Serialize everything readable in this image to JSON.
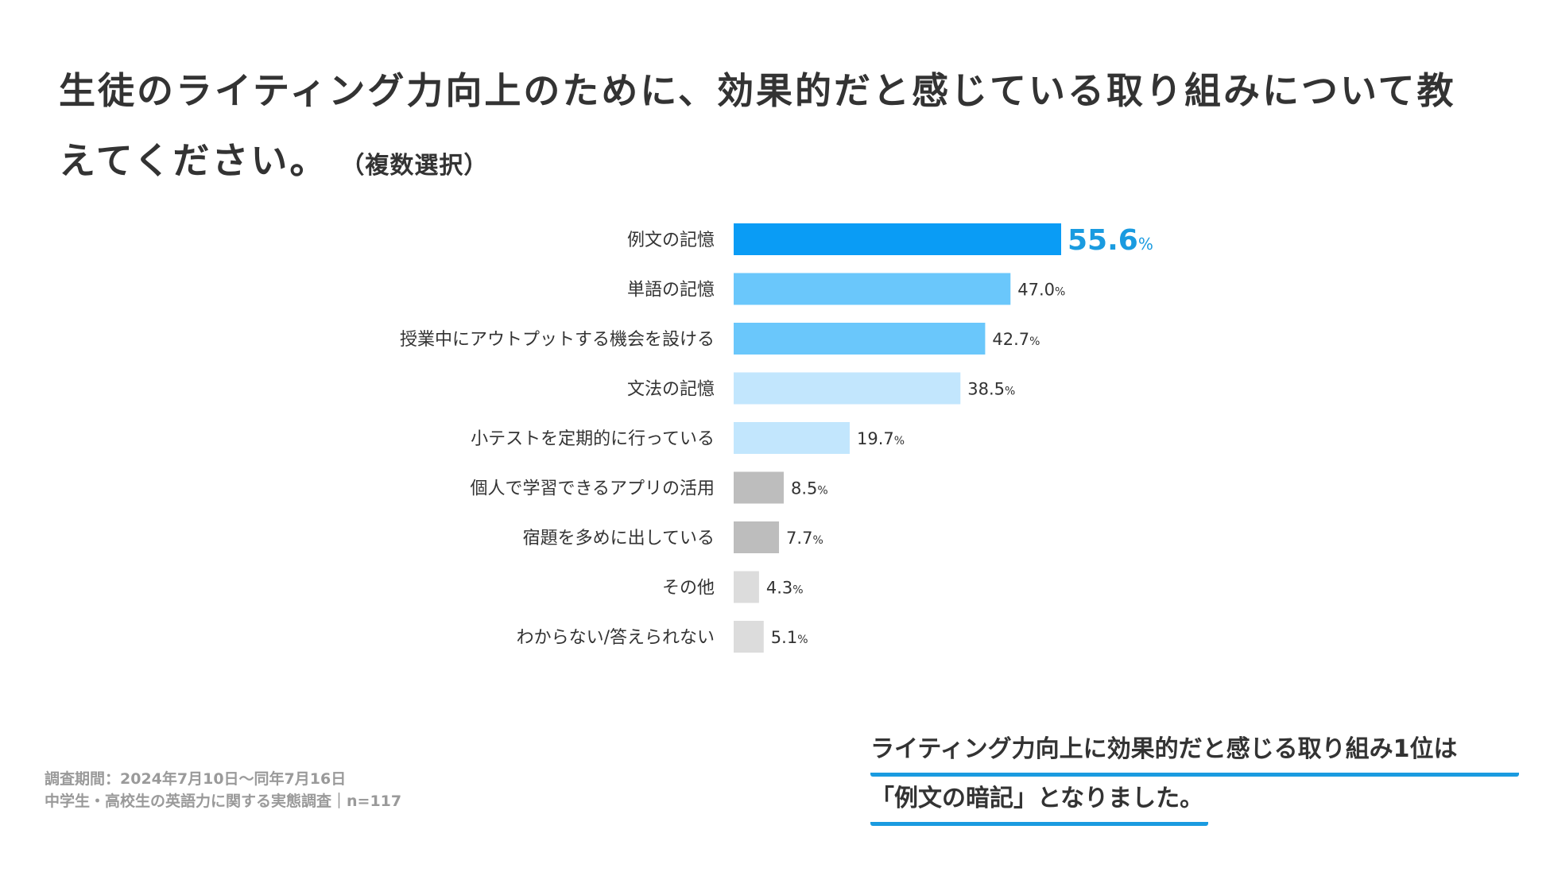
{
  "title": {
    "main": "生徒のライティング力向上のために、効果的だと感じている取り組みについて教えてください。",
    "sub": "（複数選択）"
  },
  "chart_data": {
    "type": "bar",
    "orientation": "horizontal",
    "categories": [
      "例文の記憶",
      "単語の記憶",
      "授業中にアウトプットする機会を設ける",
      "文法の記憶",
      "小テストを定期的に行っている",
      "個人で学習できるアプリの活用",
      "宿題を多めに出している",
      "その他",
      "わからない/答えられない"
    ],
    "values": [
      55.6,
      47.0,
      42.7,
      38.5,
      19.7,
      8.5,
      7.7,
      4.3,
      5.1
    ],
    "value_labels": [
      "55.6",
      "47.0",
      "42.7",
      "38.5",
      "19.7",
      "8.5",
      "7.7",
      "4.3",
      "5.1"
    ],
    "unit": "%",
    "colors": [
      "#0a9cf5",
      "#6ac7fb",
      "#6ac7fb",
      "#c2e6fd",
      "#c2e6fd",
      "#bdbdbd",
      "#bdbdbd",
      "#dcdcdc",
      "#dcdcdc"
    ],
    "highlight_color": "#1a9be0",
    "xlim": [
      0,
      100
    ],
    "grid": false,
    "legend": "none"
  },
  "footnote": {
    "period": "調査期間：2024年7月10日〜同年7月16日",
    "survey": "中学生・高校生の英語力に関する実態調査｜n=117"
  },
  "callout": {
    "line1": "ライティング力向上に効果的だと感じる取り組み1位は",
    "line2": "「例文の暗記」となりました。"
  }
}
